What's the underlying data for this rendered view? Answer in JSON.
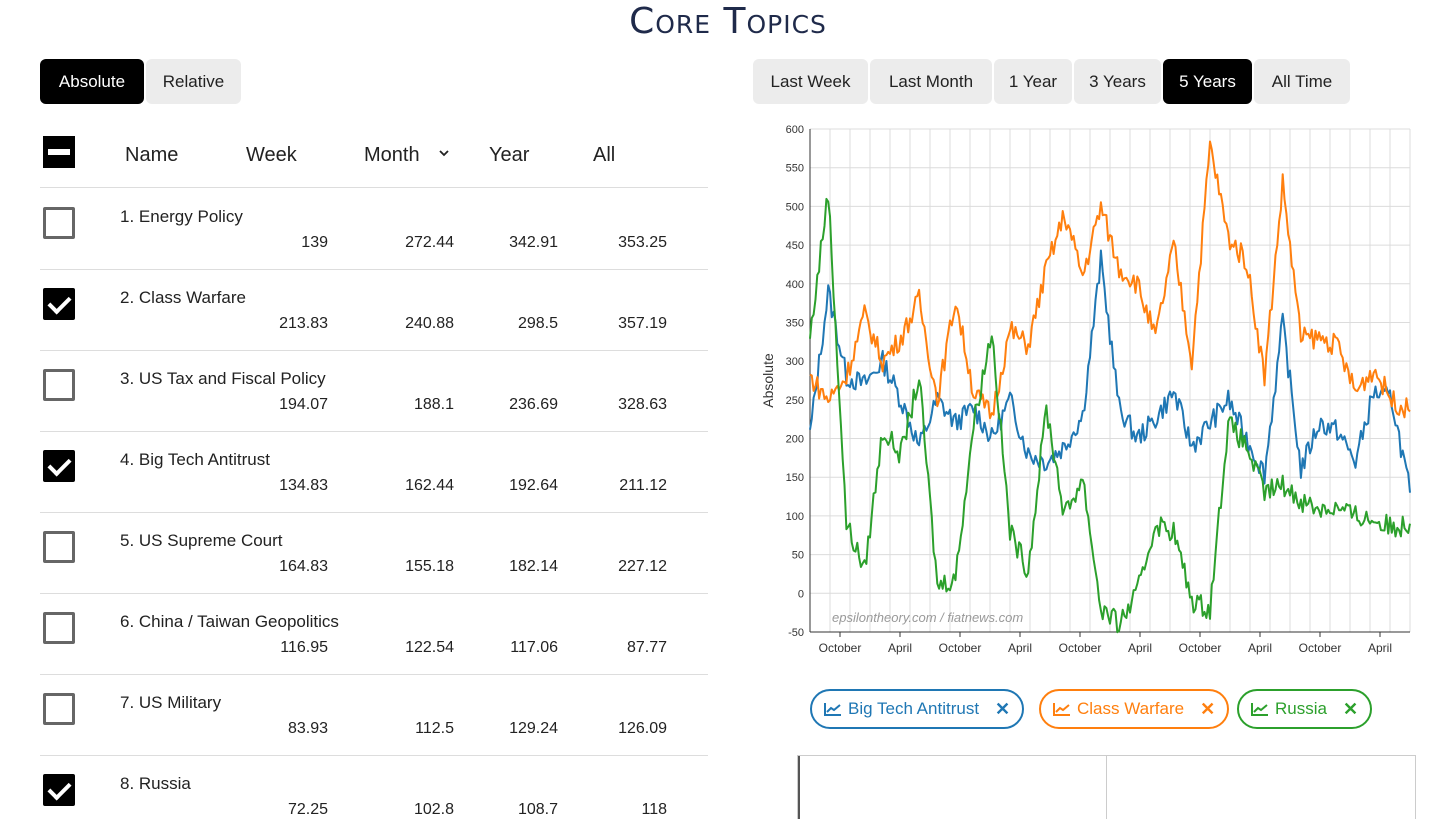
{
  "title": "Core Topics",
  "mode_buttons": [
    {
      "label": "Absolute",
      "active": true
    },
    {
      "label": "Relative",
      "active": false
    }
  ],
  "range_buttons": [
    {
      "label": "Last Week",
      "active": false
    },
    {
      "label": "Last Month",
      "active": false
    },
    {
      "label": "1 Year",
      "active": false
    },
    {
      "label": "3 Years",
      "active": false
    },
    {
      "label": "5 Years",
      "active": true
    },
    {
      "label": "All Time",
      "active": false
    }
  ],
  "table": {
    "headers": {
      "name": "Name",
      "week": "Week",
      "month": "Month",
      "year": "Year",
      "all": "All",
      "sort_icon": "chevron-down-icon"
    },
    "rows": [
      {
        "name": "1. Energy Policy",
        "checked": false,
        "week": "139",
        "month": "272.44",
        "year": "342.91",
        "all": "353.25"
      },
      {
        "name": "2. Class Warfare",
        "checked": true,
        "week": "213.83",
        "month": "240.88",
        "year": "298.5",
        "all": "357.19"
      },
      {
        "name": "3. US Tax and Fiscal Policy",
        "checked": false,
        "week": "194.07",
        "month": "188.1",
        "year": "236.69",
        "all": "328.63"
      },
      {
        "name": "4. Big Tech Antitrust",
        "checked": true,
        "week": "134.83",
        "month": "162.44",
        "year": "192.64",
        "all": "211.12"
      },
      {
        "name": "5. US Supreme Court",
        "checked": false,
        "week": "164.83",
        "month": "155.18",
        "year": "182.14",
        "all": "227.12"
      },
      {
        "name": "6. China / Taiwan Geopolitics",
        "checked": false,
        "week": "116.95",
        "month": "122.54",
        "year": "117.06",
        "all": "87.77"
      },
      {
        "name": "7. US Military",
        "checked": false,
        "week": "83.93",
        "month": "112.5",
        "year": "129.24",
        "all": "126.09"
      },
      {
        "name": "8. Russia",
        "checked": true,
        "week": "72.25",
        "month": "102.8",
        "year": "108.7",
        "all": "118"
      }
    ]
  },
  "chart_data": {
    "type": "line",
    "ylabel": "Absolute",
    "xlabel": "",
    "ylim": [
      -50,
      600
    ],
    "yticks": [
      -50,
      0,
      50,
      100,
      150,
      200,
      250,
      300,
      350,
      400,
      450,
      500,
      550,
      600
    ],
    "xtick_labels": [
      "October",
      "April",
      "October",
      "April",
      "October",
      "April",
      "October",
      "April",
      "October",
      "April"
    ],
    "watermark": "epsilontheory.com / fiatnews.com",
    "grid": true,
    "series": [
      {
        "name": "Big Tech Antitrust",
        "color": "#1f77b4",
        "values": [
          205,
          390,
          280,
          270,
          300,
          250,
          190,
          250,
          220,
          240,
          200,
          250,
          180,
          170,
          190,
          230,
          430,
          240,
          200,
          225,
          260,
          190,
          220,
          250,
          200,
          155,
          350,
          160,
          220,
          210,
          170,
          260,
          250,
          130
        ]
      },
      {
        "name": "Class Warfare",
        "color": "#ff7f0e",
        "values": [
          280,
          250,
          280,
          360,
          300,
          330,
          380,
          250,
          380,
          260,
          230,
          340,
          320,
          420,
          490,
          410,
          500,
          420,
          400,
          330,
          450,
          300,
          580,
          460,
          430,
          280,
          530,
          330,
          330,
          320,
          260,
          290,
          250,
          235
        ]
      },
      {
        "name": "Russia",
        "color": "#2ca02c",
        "values": [
          330,
          520,
          90,
          30,
          210,
          180,
          280,
          10,
          20,
          220,
          340,
          80,
          30,
          240,
          100,
          150,
          -20,
          -40,
          0,
          90,
          80,
          -10,
          -20,
          220,
          190,
          130,
          140,
          120,
          110,
          110,
          100,
          95,
          85,
          90
        ]
      }
    ]
  },
  "legend": [
    {
      "label": "Big Tech Antitrust",
      "color": "#1f77b4"
    },
    {
      "label": "Class Warfare",
      "color": "#ff7f0e"
    },
    {
      "label": "Russia",
      "color": "#2ca02c"
    }
  ]
}
